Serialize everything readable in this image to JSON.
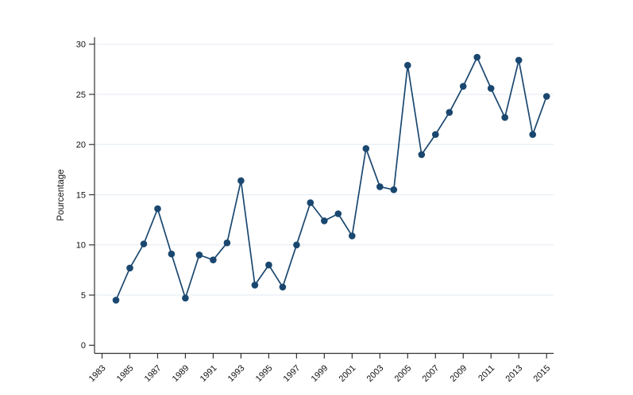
{
  "chart_data": {
    "type": "line",
    "title": "",
    "xlabel": "",
    "ylabel": "Pourcentage",
    "x": [
      1984,
      1985,
      1986,
      1987,
      1988,
      1989,
      1990,
      1991,
      1992,
      1993,
      1994,
      1995,
      1996,
      1997,
      1998,
      1999,
      2000,
      2001,
      2002,
      2003,
      2004,
      2005,
      2006,
      2007,
      2008,
      2009,
      2010,
      2011,
      2012,
      2013,
      2014,
      2015
    ],
    "values": [
      4.5,
      7.7,
      10.1,
      13.6,
      9.1,
      4.7,
      9.0,
      8.5,
      10.2,
      16.4,
      6.0,
      8.0,
      5.8,
      10.0,
      14.2,
      12.4,
      13.1,
      10.9,
      19.6,
      15.8,
      15.5,
      27.9,
      19.0,
      21.0,
      23.2,
      25.8,
      28.7,
      25.6,
      22.7,
      28.4,
      21.0,
      24.8
    ],
    "xlim": [
      1983,
      2015
    ],
    "ylim": [
      0,
      30
    ],
    "yticks": [
      0,
      5,
      10,
      15,
      20,
      25,
      30
    ],
    "xticks": [
      1983,
      1985,
      1987,
      1989,
      1991,
      1993,
      1995,
      1997,
      1999,
      2001,
      2003,
      2005,
      2007,
      2009,
      2011,
      2013,
      2015
    ],
    "grid": "horizontal",
    "legend_position": "none",
    "marker": "circle",
    "colors": {
      "series": "#1a476f",
      "grid": "#e7eef5",
      "axis": "#333333",
      "tick_label": "#111111"
    }
  }
}
